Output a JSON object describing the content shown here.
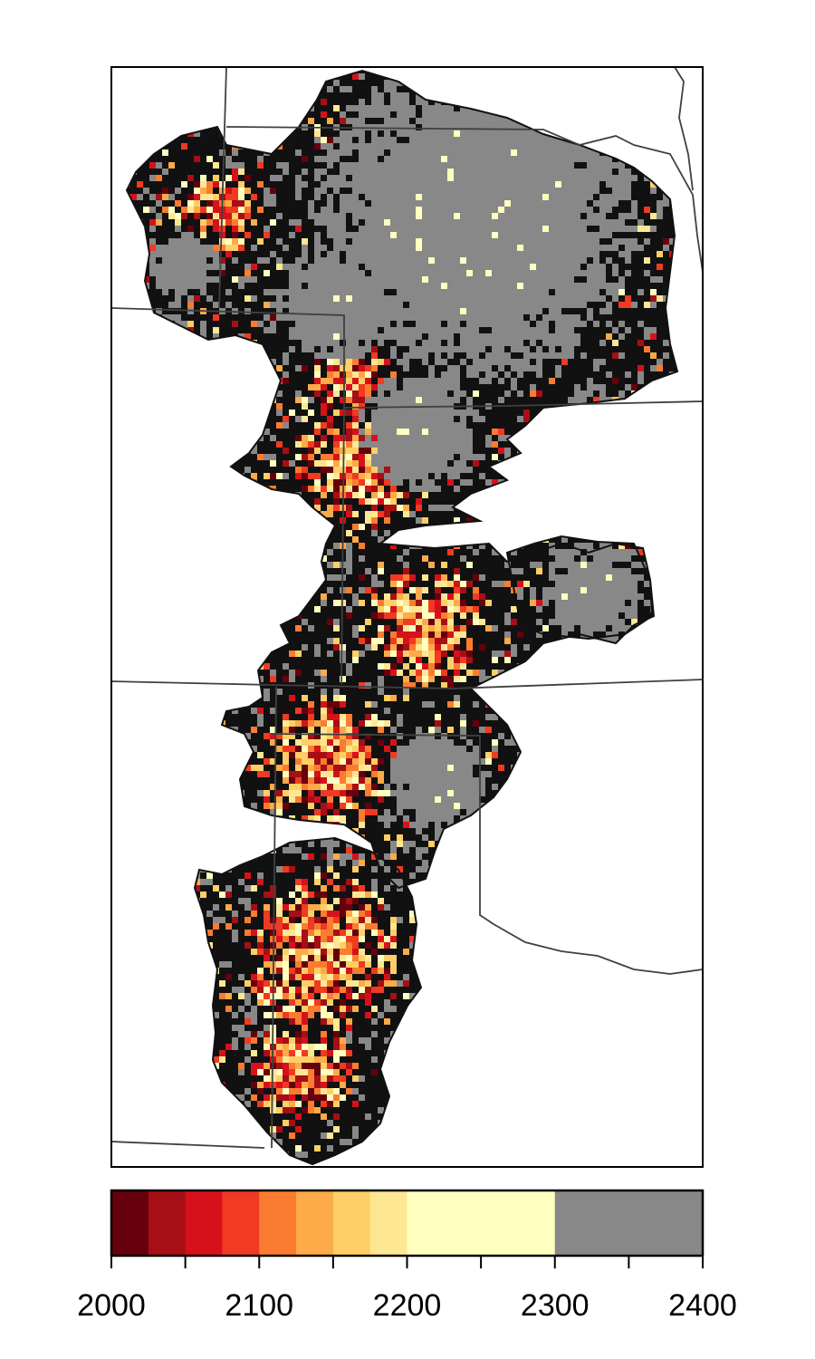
{
  "legend": {
    "breaks": [
      2000,
      2025,
      2050,
      2075,
      2100,
      2125,
      2150,
      2175,
      2200,
      2300,
      2400
    ],
    "colors": [
      "#67000d",
      "#a50f15",
      "#d7111c",
      "#f03a22",
      "#fb7c31",
      "#fdaa48",
      "#fecf66",
      "#fee793",
      "#ffffc0",
      "#888888"
    ],
    "tick_values": [
      2000,
      2050,
      2100,
      2150,
      2200,
      2250,
      2300,
      2350,
      2400
    ],
    "tick_labels": [
      "2000",
      "2100",
      "2200",
      "2300",
      "2400"
    ],
    "min": 2000,
    "max": 2400
  },
  "map": {
    "no_data_color": "#111111",
    "boundary_color": "#404040"
  }
}
